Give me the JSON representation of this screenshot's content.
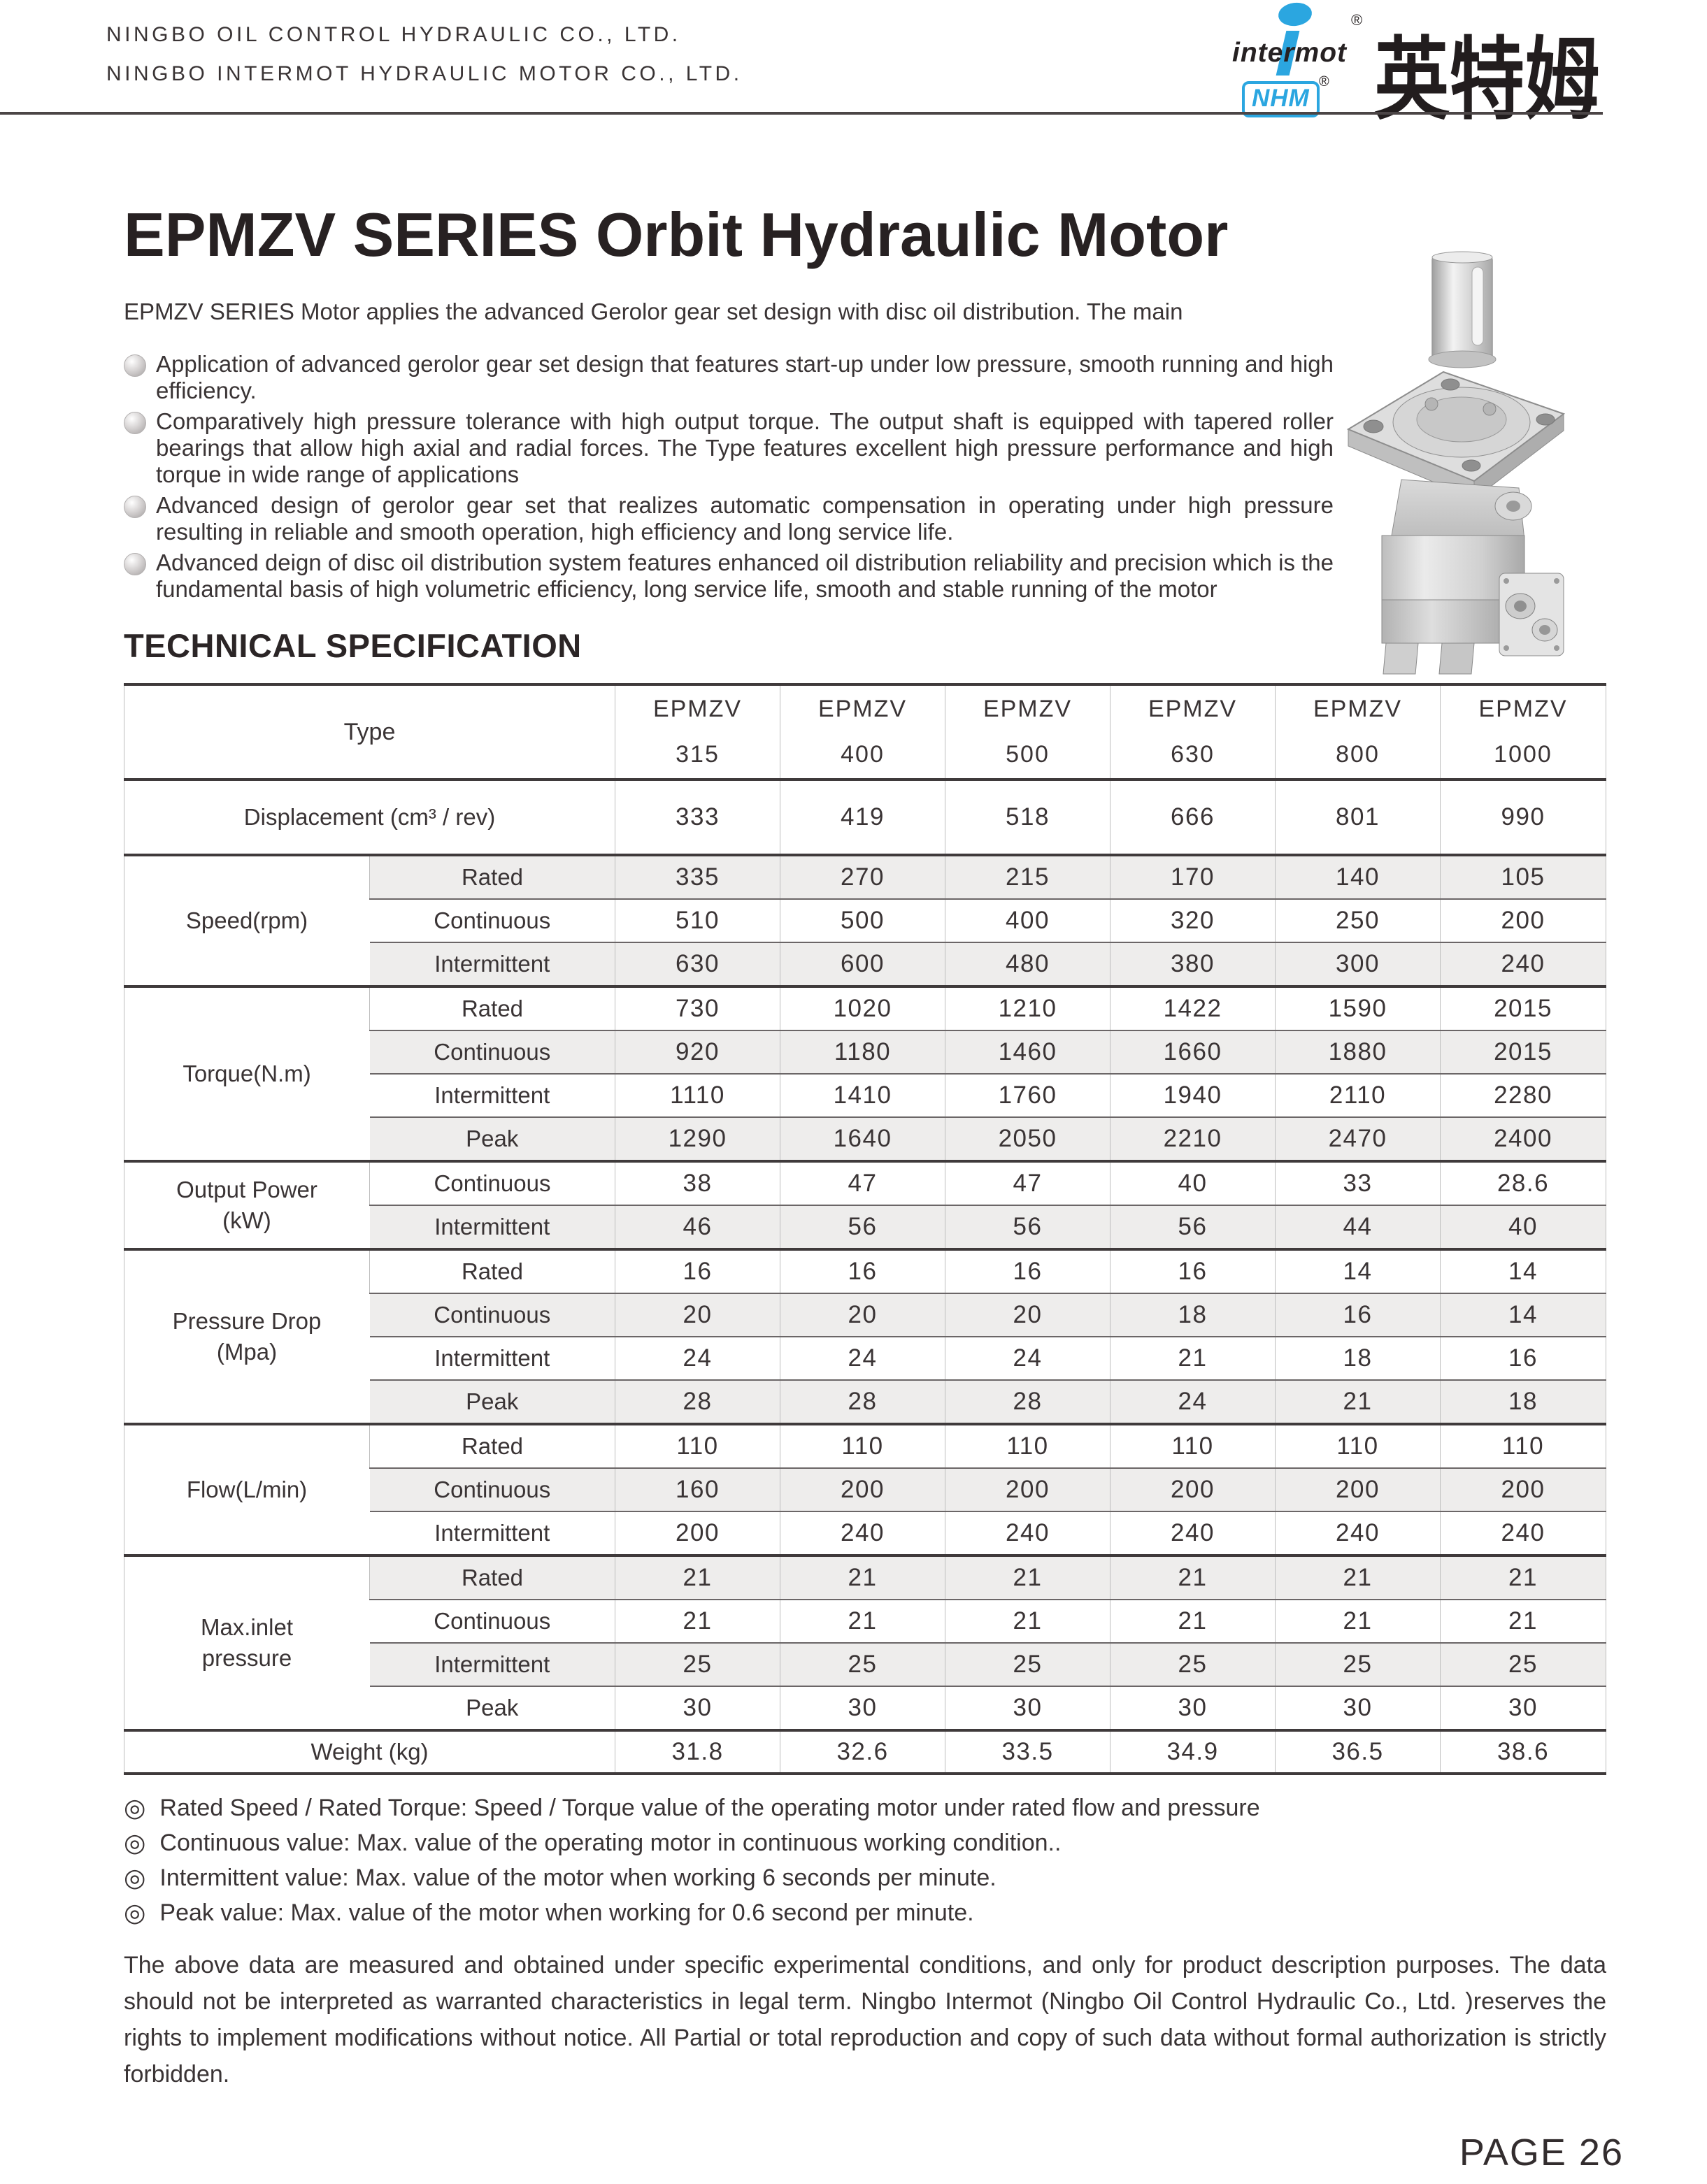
{
  "header": {
    "company_lines": [
      "NINGBO OIL CONTROL HYDRAULIC CO., LTD.",
      "NINGBO INTERMOT HYDRAULIC MOTOR CO., LTD."
    ],
    "logo": {
      "brand": "intermot",
      "sub_brand": "NHM",
      "registered": "®",
      "chinese_name": "英特姆",
      "brand_blue": "#2BA6E0"
    }
  },
  "title": "EPMZV SERIES Orbit Hydraulic Motor",
  "intro": "EPMZV SERIES Motor applies the advanced Gerolor gear set design with disc oil distribution. The main",
  "features": [
    "Application of advanced gerolor gear set design that features start-up under low pressure, smooth running and high efficiency.",
    "Comparatively high pressure tolerance with high output torque. The output shaft is equipped with tapered roller bearings that allow high axial and radial forces. The Type features excellent high pressure performance and high torque in wide range of applications",
    "Advanced design of gerolor gear set that realizes automatic compensation in operating under high pressure resulting in reliable and smooth operation, high efficiency and long service life.",
    "Advanced deign of disc oil distribution system features enhanced oil distribution reliability and precision which is the fundamental basis of high volumetric efficiency, long service life, smooth and stable running of the motor"
  ],
  "section_heading": "TECHNICAL SPECIFICATION",
  "spec_table": {
    "type_label": "Type",
    "series_name": "EPMZV",
    "model_sizes": [
      "315",
      "400",
      "500",
      "630",
      "800",
      "1000"
    ],
    "groups": [
      {
        "label": "Displacement (cm³ / rev)",
        "tall": true,
        "rows": [
          {
            "sub": "",
            "shaded": false,
            "values": [
              "333",
              "419",
              "518",
              "666",
              "801",
              "990"
            ]
          }
        ]
      },
      {
        "label": "Speed(rpm)",
        "rows": [
          {
            "sub": "Rated",
            "shaded": true,
            "values": [
              "335",
              "270",
              "215",
              "170",
              "140",
              "105"
            ]
          },
          {
            "sub": "Continuous",
            "shaded": false,
            "values": [
              "510",
              "500",
              "400",
              "320",
              "250",
              "200"
            ]
          },
          {
            "sub": "Intermittent",
            "shaded": true,
            "values": [
              "630",
              "600",
              "480",
              "380",
              "300",
              "240"
            ]
          }
        ]
      },
      {
        "label": "Torque(N.m)",
        "rows": [
          {
            "sub": "Rated",
            "shaded": false,
            "values": [
              "730",
              "1020",
              "1210",
              "1422",
              "1590",
              "2015"
            ]
          },
          {
            "sub": "Continuous",
            "shaded": true,
            "values": [
              "920",
              "1180",
              "1460",
              "1660",
              "1880",
              "2015"
            ]
          },
          {
            "sub": "Intermittent",
            "shaded": false,
            "values": [
              "1110",
              "1410",
              "1760",
              "1940",
              "2110",
              "2280"
            ]
          },
          {
            "sub": "Peak",
            "shaded": true,
            "values": [
              "1290",
              "1640",
              "2050",
              "2210",
              "2470",
              "2400"
            ]
          }
        ]
      },
      {
        "label": "Output Power\n(kW)",
        "center": true,
        "rows": [
          {
            "sub": "Continuous",
            "shaded": false,
            "values": [
              "38",
              "47",
              "47",
              "40",
              "33",
              "28.6"
            ]
          },
          {
            "sub": "Intermittent",
            "shaded": true,
            "values": [
              "46",
              "56",
              "56",
              "56",
              "44",
              "40"
            ]
          }
        ]
      },
      {
        "label": "Pressure Drop\n(Mpa)",
        "center": true,
        "rows": [
          {
            "sub": "Rated",
            "shaded": false,
            "values": [
              "16",
              "16",
              "16",
              "16",
              "14",
              "14"
            ]
          },
          {
            "sub": "Continuous",
            "shaded": true,
            "values": [
              "20",
              "20",
              "20",
              "18",
              "16",
              "14"
            ]
          },
          {
            "sub": "Intermittent",
            "shaded": false,
            "values": [
              "24",
              "24",
              "24",
              "21",
              "18",
              "16"
            ]
          },
          {
            "sub": "Peak",
            "shaded": true,
            "values": [
              "28",
              "28",
              "28",
              "24",
              "21",
              "18"
            ]
          }
        ]
      },
      {
        "label": "Flow(L/min)",
        "rows": [
          {
            "sub": "Rated",
            "shaded": false,
            "values": [
              "110",
              "110",
              "110",
              "110",
              "110",
              "110"
            ]
          },
          {
            "sub": "Continuous",
            "shaded": true,
            "values": [
              "160",
              "200",
              "200",
              "200",
              "200",
              "200"
            ]
          },
          {
            "sub": "Intermittent",
            "shaded": false,
            "values": [
              "200",
              "240",
              "240",
              "240",
              "240",
              "240"
            ]
          }
        ]
      },
      {
        "label": "Max.inlet\npressure",
        "rows": [
          {
            "sub": "Rated",
            "shaded": true,
            "values": [
              "21",
              "21",
              "21",
              "21",
              "21",
              "21"
            ]
          },
          {
            "sub": "Continuous",
            "shaded": false,
            "values": [
              "21",
              "21",
              "21",
              "21",
              "21",
              "21"
            ]
          },
          {
            "sub": "Intermittent",
            "shaded": true,
            "values": [
              "25",
              "25",
              "25",
              "25",
              "25",
              "25"
            ]
          },
          {
            "sub": "Peak",
            "shaded": false,
            "values": [
              "30",
              "30",
              "30",
              "30",
              "30",
              "30"
            ]
          }
        ]
      },
      {
        "label": "Weight (kg)",
        "rows": [
          {
            "sub": "",
            "shaded": false,
            "values": [
              "31.8",
              "32.6",
              "33.5",
              "34.9",
              "36.5",
              "38.6"
            ]
          }
        ]
      }
    ]
  },
  "note_symbol": "◎",
  "notes": [
    "Rated Speed / Rated Torque: Speed / Torque value of the operating motor under rated flow and pressure",
    "Continuous value: Max. value of the operating motor in continuous working condition..",
    "Intermittent value: Max. value of the motor when working 6 seconds per minute.",
    "Peak value: Max. value of the motor when working for 0.6 second per minute."
  ],
  "disclaimer": "The above data are measured and obtained under specific experimental conditions, and only for product description purposes. The data should not be interpreted as warranted characteristics in legal term. Ningbo Intermot (Ningbo Oil Control Hydraulic Co., Ltd. )reserves the rights to implement modifications without notice. All Partial or total reproduction and copy of such data without formal authorization is strictly forbidden.",
  "page_label": "PAGE 26"
}
